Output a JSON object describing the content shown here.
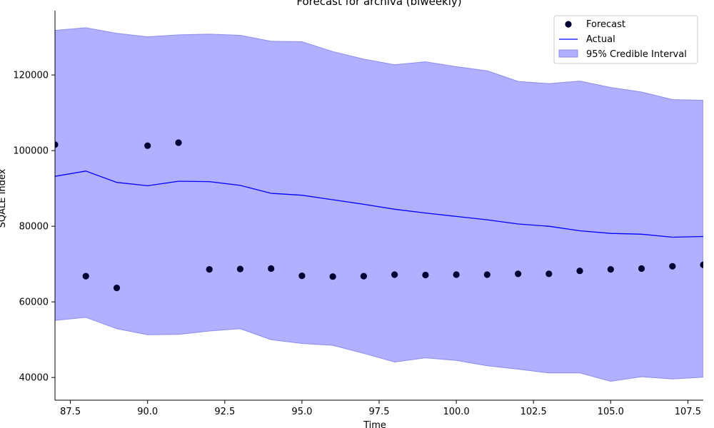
{
  "chart_data": {
    "type": "line",
    "title": "Forecast for archiva (biweekly)",
    "xlabel": "Time",
    "ylabel": "SQALE Index",
    "xlim": [
      87,
      108
    ],
    "ylim": [
      34000,
      137000
    ],
    "xticks": [
      87.5,
      90.0,
      92.5,
      95.0,
      97.5,
      100.0,
      102.5,
      105.0,
      107.5
    ],
    "xtick_labels": [
      "87.5",
      "90.0",
      "92.5",
      "95.0",
      "97.5",
      "100.0",
      "102.5",
      "105.0",
      "107.5"
    ],
    "yticks": [
      40000,
      60000,
      80000,
      100000,
      120000
    ],
    "ytick_labels": [
      "40000",
      "60000",
      "80000",
      "100000",
      "120000"
    ],
    "legend_position": "top-right",
    "colors": {
      "forecast": "#000033",
      "actual": "#0000ff",
      "interval_fill": "#b0b0ff",
      "interval_edge": "#8c8cf0"
    },
    "series": [
      {
        "name": "Forecast",
        "kind": "scatter",
        "x": [
          87,
          88,
          89,
          90,
          91,
          92,
          93,
          94,
          95,
          96,
          97,
          98,
          99,
          100,
          101,
          102,
          103,
          104,
          105,
          106,
          107,
          108
        ],
        "y": [
          101600,
          66800,
          63700,
          101300,
          102100,
          68600,
          68700,
          68800,
          66900,
          66700,
          66800,
          67200,
          67100,
          67200,
          67200,
          67400,
          67400,
          68200,
          68600,
          68800,
          69400,
          69800
        ]
      },
      {
        "name": "Actual",
        "kind": "line",
        "x": [
          87,
          88,
          89,
          90,
          91,
          92,
          93,
          94,
          95,
          96,
          97,
          98,
          99,
          100,
          101,
          102,
          103,
          104,
          105,
          106,
          107,
          108
        ],
        "y": [
          93200,
          94600,
          91600,
          90700,
          91900,
          91800,
          90800,
          88700,
          88200,
          87000,
          85800,
          84500,
          83500,
          82600,
          81700,
          80600,
          80000,
          78800,
          78100,
          77900,
          77100,
          77300
        ]
      },
      {
        "name": "95% Credible Interval",
        "kind": "band",
        "x": [
          87,
          88,
          89,
          90,
          91,
          92,
          93,
          94,
          95,
          96,
          97,
          98,
          99,
          100,
          101,
          102,
          103,
          104,
          105,
          106,
          107,
          108
        ],
        "upper": [
          131800,
          132500,
          131000,
          130100,
          130600,
          130800,
          130500,
          128900,
          128800,
          126200,
          124200,
          122700,
          123500,
          122200,
          121100,
          118300,
          117700,
          118400,
          116700,
          115500,
          113500,
          113300
        ],
        "lower": [
          55100,
          55900,
          52900,
          51300,
          51400,
          52300,
          52900,
          50000,
          49000,
          48500,
          46400,
          44100,
          45200,
          44500,
          43100,
          42200,
          41200,
          41200,
          39000,
          40200,
          39600,
          40100
        ]
      }
    ]
  }
}
